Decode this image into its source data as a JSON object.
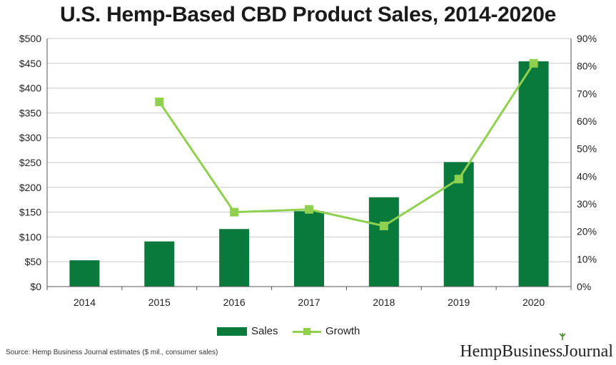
{
  "title": "U.S. Hemp-Based CBD Product Sales, 2014-2020e",
  "source": "Source: Hemp Business Journal estimates ($ mil., consumer sales)",
  "brand": "HempBusinessJournal",
  "colors": {
    "sales": "#0a7a3c",
    "growth": "#8fd14f",
    "grid": "#c8c8c8",
    "axis": "#555555"
  },
  "chart_data": {
    "type": "bar",
    "title": "U.S. Hemp-Based CBD Product Sales, 2014-2020e",
    "categories": [
      "2014",
      "2015",
      "2016",
      "2017",
      "2018",
      "2019",
      "2020"
    ],
    "series": [
      {
        "name": "Sales",
        "type": "bar",
        "axis": "left",
        "values": [
          53,
          91,
          116,
          152,
          180,
          251,
          454
        ]
      },
      {
        "name": "Growth",
        "type": "line",
        "axis": "right",
        "values": [
          null,
          67,
          27,
          28,
          22,
          39,
          81
        ]
      }
    ],
    "ylim": [
      0,
      500
    ],
    "y2lim": [
      0,
      90
    ],
    "yticks": [
      "$0",
      "$50",
      "$100",
      "$150",
      "$200",
      "$250",
      "$300",
      "$350",
      "$400",
      "$450",
      "$500"
    ],
    "y2ticks": [
      "0%",
      "10%",
      "20%",
      "30%",
      "40%",
      "50%",
      "60%",
      "70%",
      "80%",
      "90%"
    ],
    "legend": [
      "Sales",
      "Growth"
    ],
    "legend_position": "bottom",
    "grid": true
  }
}
